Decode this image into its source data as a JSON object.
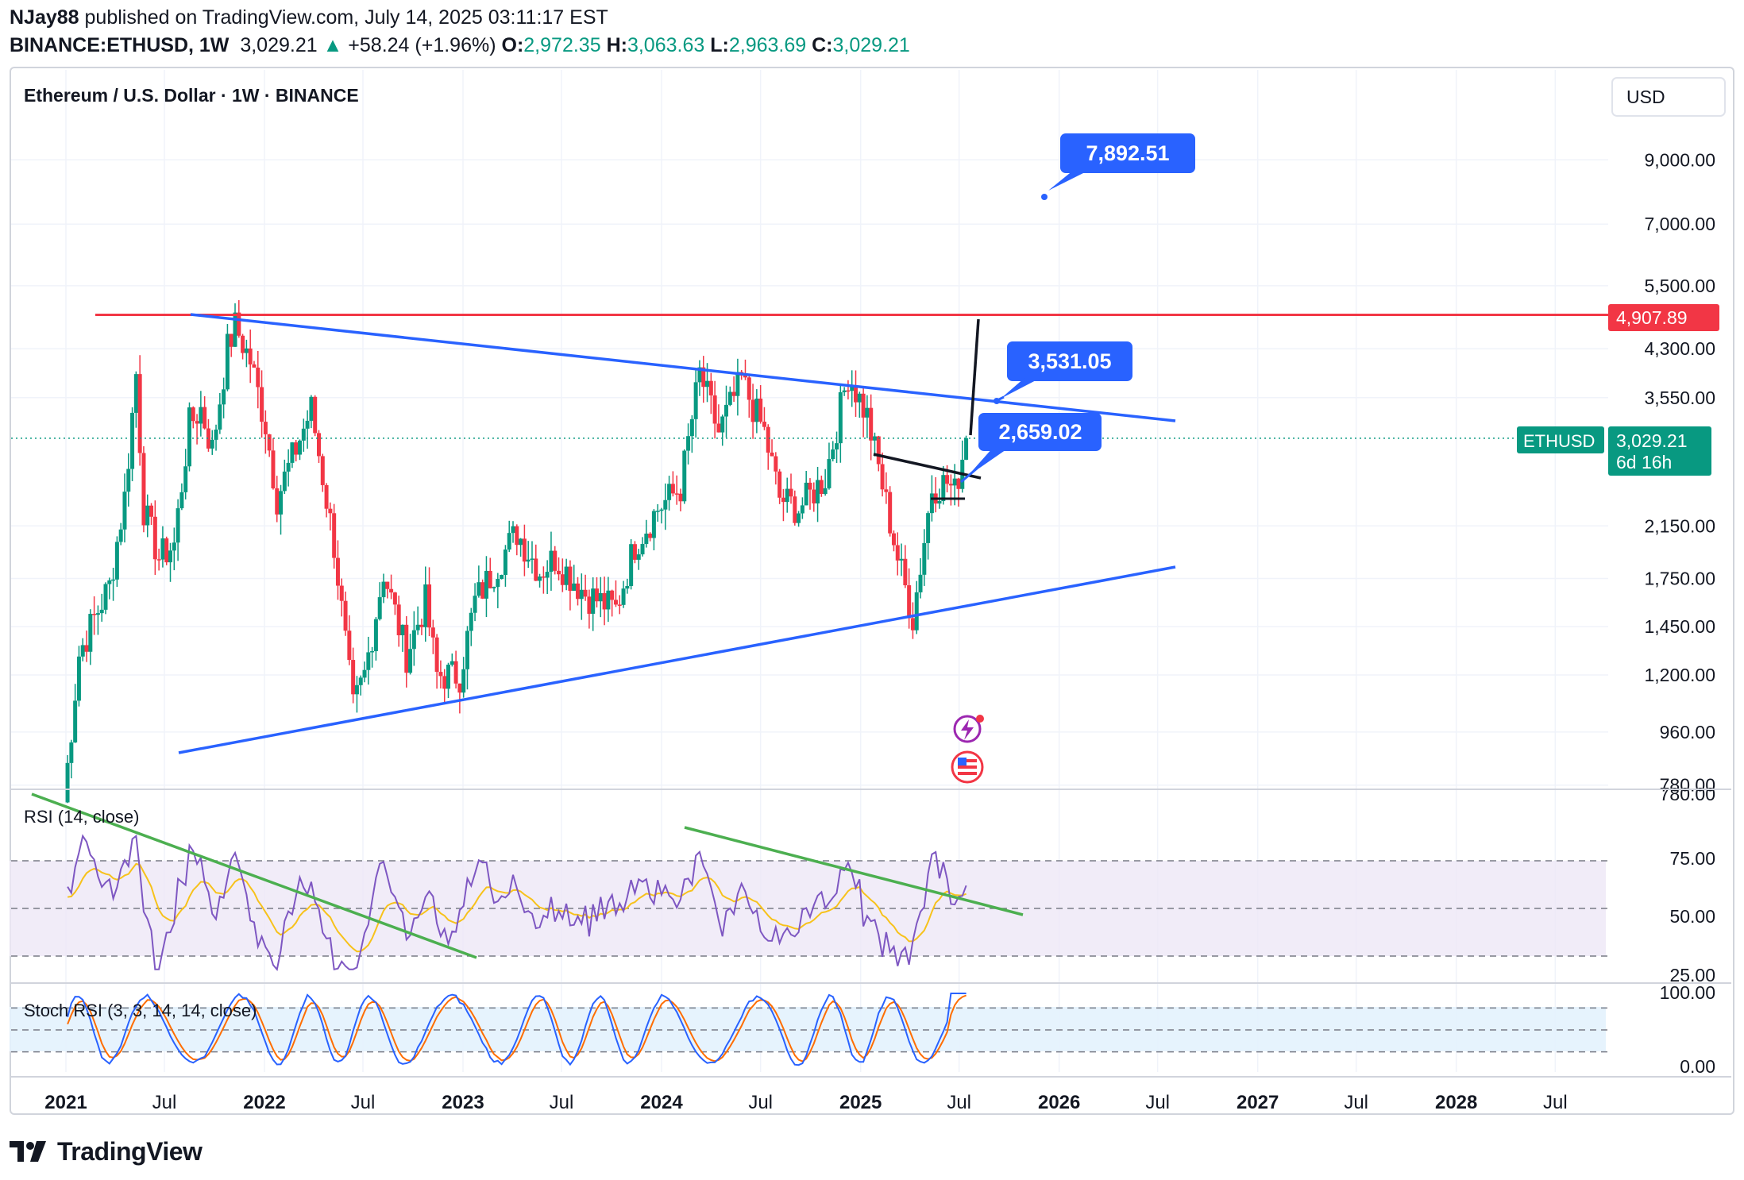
{
  "header": {
    "author": "NJay88",
    "published": "published on TradingView.com, July 14, 2025 03:11:17 EST",
    "symbol": "BINANCE:ETHUSD, 1W",
    "last": "3,029.21",
    "change_arrow": "▲",
    "change": "+58.24 (+1.96%)",
    "o_label": "O:",
    "o": "2,972.35",
    "h_label": "H:",
    "h": "3,063.63",
    "l_label": "L:",
    "l": "2,963.69",
    "c_label": "C:",
    "c": "3,029.21"
  },
  "chart": {
    "title": "Ethereum / U.S. Dollar · 1W · BINANCE",
    "currency_button": "USD",
    "price_ticks": [
      "9,000.00",
      "7,000.00",
      "5,500.00",
      "4,300.00",
      "3,550.00",
      "2,150.00",
      "1,750.00",
      "1,450.00",
      "1,200.00",
      "960.00",
      "780.00"
    ],
    "resistance_label": "4,907.89",
    "last_price_symbol": "ETHUSD",
    "last_price": "3,029.21",
    "countdown": "6d 16h",
    "callouts": [
      "7,892.51",
      "3,531.05",
      "2,659.02"
    ],
    "time_ticks": [
      "2021",
      "Jul",
      "2022",
      "Jul",
      "2023",
      "Jul",
      "2024",
      "Jul",
      "2025",
      "Jul",
      "2026",
      "Jul",
      "2027",
      "Jul",
      "2028",
      "Jul"
    ],
    "colors": {
      "up": "#089981",
      "down": "#f23645",
      "trend": "#2962ff",
      "resistance": "#f23645",
      "rsi_line": "#7e57c2",
      "rsi_ma": "#f7c21b",
      "stoch_k": "#2962ff",
      "stoch_d": "#ff6d00",
      "rsi_trend": "#4caf50"
    }
  },
  "rsi": {
    "label": "RSI (14, close)",
    "ticks": [
      "780.00",
      "75.00",
      "50.00",
      "25.00"
    ]
  },
  "stoch": {
    "label": "Stoch RSI (3, 3, 14, 14, close)",
    "ticks": [
      "100.00",
      "0.00"
    ]
  },
  "chart_data": {
    "type": "candlestick",
    "title": "Ethereum / U.S. Dollar · 1W · BINANCE",
    "scale": "log",
    "x_range": [
      "2020-12",
      "2028-10"
    ],
    "y_range": [
      780,
      11000
    ],
    "ohlc_last": {
      "open": 2972.35,
      "high": 3063.63,
      "low": 2963.69,
      "close": 3029.21
    },
    "weekly_close_path": [
      [
        "2020-12-28",
        730
      ],
      [
        "2021-01-25",
        1300
      ],
      [
        "2021-02-22",
        1500
      ],
      [
        "2021-03-22",
        1700
      ],
      [
        "2021-04-19",
        2400
      ],
      [
        "2021-05-10",
        3900
      ],
      [
        "2021-05-24",
        2300
      ],
      [
        "2021-06-21",
        1900
      ],
      [
        "2021-07-19",
        2000
      ],
      [
        "2021-08-16",
        3200
      ],
      [
        "2021-09-06",
        3400
      ],
      [
        "2021-09-27",
        2900
      ],
      [
        "2021-10-25",
        4300
      ],
      [
        "2021-11-08",
        4700
      ],
      [
        "2021-12-06",
        4100
      ],
      [
        "2022-01-03",
        3200
      ],
      [
        "2022-01-24",
        2400
      ],
      [
        "2022-03-28",
        3400
      ],
      [
        "2022-05-09",
        2000
      ],
      [
        "2022-06-13",
        1050
      ],
      [
        "2022-07-04",
        1200
      ],
      [
        "2022-08-08",
        1800
      ],
      [
        "2022-09-19",
        1300
      ],
      [
        "2022-10-24",
        1600
      ],
      [
        "2022-11-14",
        1200
      ],
      [
        "2022-12-26",
        1200
      ],
      [
        "2023-01-23",
        1600
      ],
      [
        "2023-04-10",
        2100
      ],
      [
        "2023-05-22",
        1800
      ],
      [
        "2023-06-19",
        1900
      ],
      [
        "2023-08-14",
        1650
      ],
      [
        "2023-10-09",
        1550
      ],
      [
        "2023-11-13",
        2000
      ],
      [
        "2023-12-25",
        2300
      ],
      [
        "2024-02-05",
        2500
      ],
      [
        "2024-03-11",
        3900
      ],
      [
        "2024-04-15",
        3100
      ],
      [
        "2024-05-27",
        3800
      ],
      [
        "2024-07-08",
        3100
      ],
      [
        "2024-08-05",
        2400
      ],
      [
        "2024-09-09",
        2300
      ],
      [
        "2024-10-28",
        2600
      ],
      [
        "2024-12-09",
        3900
      ],
      [
        "2025-01-13",
        3300
      ],
      [
        "2025-02-03",
        2700
      ],
      [
        "2025-03-10",
        1900
      ],
      [
        "2025-04-07",
        1500
      ],
      [
        "2025-05-12",
        2500
      ],
      [
        "2025-06-09",
        2550
      ],
      [
        "2025-06-23",
        2450
      ],
      [
        "2025-07-14",
        3029.21
      ]
    ],
    "resistance_level": 4907.89,
    "annotations": [
      {
        "label": "7,892.51",
        "kind": "target"
      },
      {
        "label": "3,531.05",
        "kind": "descending trendline"
      },
      {
        "label": "2,659.02",
        "kind": "breakout"
      }
    ],
    "rsi": {
      "period": 14,
      "bands": [
        30,
        50,
        70
      ],
      "last": 60
    },
    "stoch_rsi": {
      "params": [
        3,
        3,
        14,
        14
      ],
      "bands": [
        20,
        50,
        80
      ],
      "last": 100
    }
  }
}
